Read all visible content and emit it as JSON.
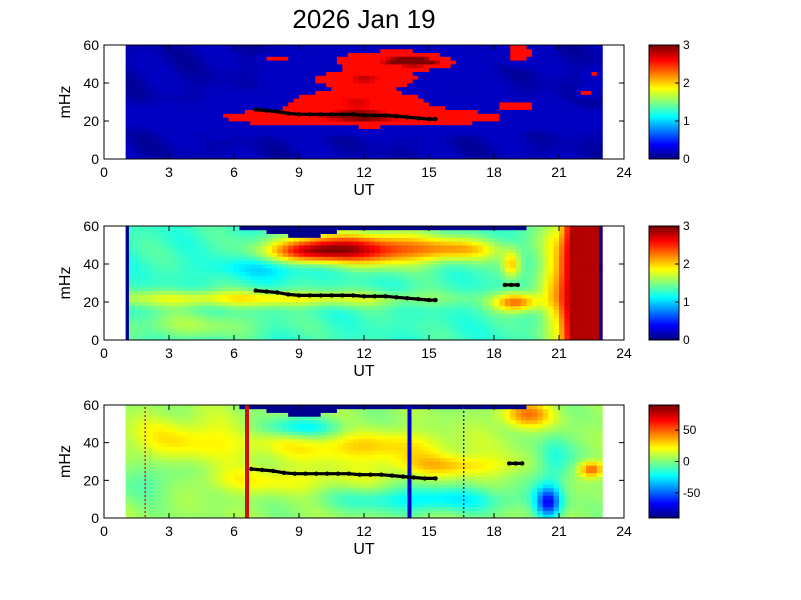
{
  "title": "2026 Jan 19",
  "chart_data": [
    {
      "type": "heatmap",
      "panel": "top",
      "xlabel": "UT",
      "ylabel": "mHz",
      "xlim": [
        0,
        24
      ],
      "ylim": [
        0,
        60
      ],
      "x_ticks": [
        "0",
        "3",
        "6",
        "9",
        "12",
        "15",
        "18",
        "21",
        "24"
      ],
      "y_ticks": [
        "0",
        "20",
        "40",
        "60"
      ],
      "colorbar": {
        "range": [
          0,
          3
        ],
        "ticks": [
          "0",
          "1",
          "2",
          "3"
        ],
        "colormap": "jet"
      },
      "data_interval_ut": [
        1.0,
        23.0
      ],
      "background_value": 0.15,
      "features": [
        {
          "ut": 12.0,
          "freq": 22,
          "sig_ut": 4.6,
          "sig_f": 3.5,
          "value": 2.9
        },
        {
          "ut": 11.7,
          "freq": 31,
          "sig_ut": 2.2,
          "sig_f": 4,
          "value": 2.6
        },
        {
          "ut": 12.0,
          "freq": 42,
          "sig_ut": 1.7,
          "sig_f": 3,
          "value": 2.7
        },
        {
          "ut": 13.2,
          "freq": 52,
          "sig_ut": 1.7,
          "sig_f": 4,
          "value": 2.7
        },
        {
          "ut": 14.8,
          "freq": 51,
          "sig_ut": 0.9,
          "sig_f": 2,
          "value": 2.1
        },
        {
          "ut": 8.0,
          "freq": 53,
          "sig_ut": 0.4,
          "sig_f": 1.2,
          "value": 2.1
        },
        {
          "ut": 19.2,
          "freq": 56,
          "sig_ut": 0.45,
          "sig_f": 3,
          "value": 2.6
        },
        {
          "ut": 19.0,
          "freq": 28,
          "sig_ut": 0.6,
          "sig_f": 1.4,
          "value": 2.3
        },
        {
          "ut": 22.2,
          "freq": 35,
          "sig_ut": 0.2,
          "sig_f": 1.5,
          "value": 2.0
        },
        {
          "ut": 22.6,
          "freq": 45,
          "sig_ut": 0.2,
          "sig_f": 1.5,
          "value": 1.9
        },
        {
          "ut": 5.3,
          "freq": 12,
          "sig_ut": 0.2,
          "sig_f": 0.6,
          "value": 2.0
        }
      ],
      "ridge_ut": [
        7.0,
        7.5,
        8.0,
        8.5,
        9.0,
        9.5,
        10.0,
        10.5,
        11.0,
        11.5,
        12.0,
        12.5,
        13.0,
        13.5,
        14.0,
        14.5,
        15.0,
        15.3
      ],
      "ridge_freq": [
        26,
        25.5,
        25,
        24,
        23.5,
        23.5,
        23.5,
        23.5,
        23.5,
        23.5,
        23,
        23,
        23,
        22.5,
        22,
        21.5,
        21,
        21
      ],
      "vertical_lines": []
    },
    {
      "type": "heatmap",
      "panel": "middle",
      "xlabel": "UT",
      "ylabel": "mHz",
      "xlim": [
        0,
        24
      ],
      "ylim": [
        0,
        60
      ],
      "x_ticks": [
        "0",
        "3",
        "6",
        "9",
        "12",
        "15",
        "18",
        "21",
        "24"
      ],
      "y_ticks": [
        "0",
        "20",
        "40",
        "60"
      ],
      "colorbar": {
        "range": [
          0,
          3
        ],
        "ticks": [
          "0",
          "1",
          "2",
          "3"
        ],
        "colormap": "jet"
      },
      "data_interval_ut": [
        1.0,
        23.0
      ],
      "background_value": 1.3,
      "top_gap_start_ut": 6.3,
      "features": [
        {
          "ut": 12.0,
          "freq": 48,
          "sig_ut": 2.4,
          "sig_f": 6,
          "value": 2.6
        },
        {
          "ut": 9.5,
          "freq": 47,
          "sig_ut": 1.3,
          "sig_f": 4,
          "value": 2.2
        },
        {
          "ut": 16.5,
          "freq": 48,
          "sig_ut": 1.5,
          "sig_f": 4,
          "value": 1.9
        },
        {
          "ut": 7.0,
          "freq": 22,
          "sig_ut": 5.5,
          "sig_f": 3,
          "value": 1.9
        },
        {
          "ut": 19.0,
          "freq": 20,
          "sig_ut": 0.7,
          "sig_f": 3.5,
          "value": 2.3
        },
        {
          "ut": 18.8,
          "freq": 40,
          "sig_ut": 0.3,
          "sig_f": 5,
          "value": 2.0
        },
        {
          "ut": 21.6,
          "freq": 30,
          "sig_ut": 0.9,
          "sig_f": 30,
          "value": 2.4
        },
        {
          "ut": 8.0,
          "freq": 38,
          "sig_ut": 2.0,
          "sig_f": 4,
          "value": 1.0
        },
        {
          "ut": 4.0,
          "freq": 8,
          "sig_ut": 2.5,
          "sig_f": 5,
          "value": 1.6
        }
      ],
      "band_right_ut": 21.0,
      "band_right_value": 2.85,
      "ridge_ut": [
        7.0,
        7.5,
        8.0,
        8.5,
        9.0,
        9.5,
        10.0,
        10.5,
        11.0,
        11.5,
        12.0,
        12.5,
        13.0,
        13.5,
        14.0,
        14.5,
        15.0,
        15.3
      ],
      "ridge_freq": [
        26,
        25.5,
        25,
        24,
        23.5,
        23.5,
        23.5,
        23.5,
        23.5,
        23.5,
        23,
        23,
        23,
        22.5,
        22,
        21.5,
        21,
        21
      ],
      "extra_ridge": {
        "ut": [
          18.5,
          18.8,
          19.1
        ],
        "freq": [
          29,
          29,
          29
        ]
      },
      "vertical_lines": []
    },
    {
      "type": "heatmap",
      "panel": "bottom",
      "xlabel": "UT",
      "ylabel": "mHz",
      "xlim": [
        0,
        24
      ],
      "ylim": [
        0,
        60
      ],
      "x_ticks": [
        "0",
        "3",
        "6",
        "9",
        "12",
        "15",
        "18",
        "21",
        "24"
      ],
      "y_ticks": [
        "0",
        "20",
        "40",
        "60"
      ],
      "colorbar": {
        "range": [
          -90,
          90
        ],
        "ticks": [
          "-50",
          "0",
          "50"
        ],
        "colormap": "jet"
      },
      "data_interval_ut": [
        1.0,
        23.0
      ],
      "background_value": 5,
      "top_gap_start_ut": 6.3,
      "features": [
        {
          "ut": 4.0,
          "freq": 42,
          "sig_ut": 2.5,
          "sig_f": 8,
          "value": 25
        },
        {
          "ut": 12.0,
          "freq": 38,
          "sig_ut": 3.0,
          "sig_f": 6,
          "value": 30
        },
        {
          "ut": 7.0,
          "freq": 20,
          "sig_ut": 4.0,
          "sig_f": 5,
          "value": 22
        },
        {
          "ut": 16.0,
          "freq": 28,
          "sig_ut": 2.0,
          "sig_f": 4,
          "value": 30
        },
        {
          "ut": 19.5,
          "freq": 55,
          "sig_ut": 0.8,
          "sig_f": 5,
          "value": 45
        },
        {
          "ut": 22.5,
          "freq": 26,
          "sig_ut": 0.4,
          "sig_f": 3,
          "value": 55
        },
        {
          "ut": 9.0,
          "freq": 48,
          "sig_ut": 1.5,
          "sig_f": 4,
          "value": -25
        },
        {
          "ut": 15.0,
          "freq": 10,
          "sig_ut": 3.0,
          "sig_f": 5,
          "value": -25
        },
        {
          "ut": 20.5,
          "freq": 8,
          "sig_ut": 0.4,
          "sig_f": 6,
          "value": -60
        },
        {
          "ut": 20.8,
          "freq": 30,
          "sig_ut": 0.6,
          "sig_f": 10,
          "value": -20
        },
        {
          "ut": 2.5,
          "freq": 20,
          "sig_ut": 1.5,
          "sig_f": 6,
          "value": -15
        }
      ],
      "ridge_ut": [
        6.8,
        7.3,
        7.8,
        8.3,
        8.8,
        9.3,
        9.8,
        10.3,
        10.8,
        11.3,
        11.8,
        12.3,
        12.8,
        13.3,
        13.8,
        14.3,
        14.8,
        15.3
      ],
      "ridge_freq": [
        26,
        25.5,
        25,
        24,
        23.5,
        23.5,
        23.5,
        23.5,
        23.5,
        23.5,
        23,
        23,
        23,
        22.5,
        22,
        21.5,
        21,
        21
      ],
      "extra_ridge": {
        "ut": [
          18.7,
          19.0,
          19.3
        ],
        "freq": [
          29,
          29,
          29
        ]
      },
      "vertical_lines": [
        {
          "ut": 1.9,
          "style": "dotted",
          "color": "#c03030"
        },
        {
          "ut": 6.6,
          "style": "solid",
          "color": "#d01010"
        },
        {
          "ut": 14.1,
          "style": "solid",
          "color": "#0000cc"
        },
        {
          "ut": 16.6,
          "style": "dotted",
          "color": "#2020a0"
        }
      ]
    }
  ]
}
